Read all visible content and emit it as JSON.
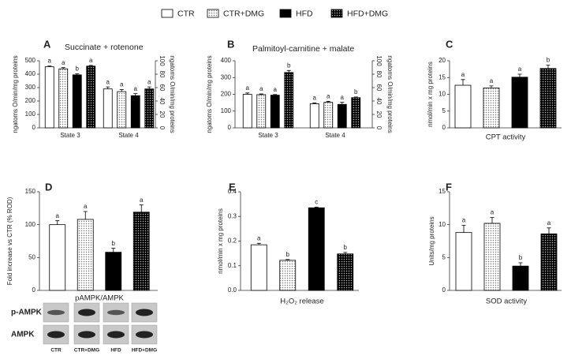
{
  "legend": {
    "series": [
      {
        "name": "CTR",
        "color": "#ffffff",
        "pattern": "solid"
      },
      {
        "name": "CTR+DMG",
        "color": "#ffffff",
        "pattern": "dots"
      },
      {
        "name": "HFD",
        "color": "#000000",
        "pattern": "solid"
      },
      {
        "name": "HFD+DMG",
        "color": "#000000",
        "pattern": "dots"
      }
    ]
  },
  "chart_data": [
    {
      "type": "bar",
      "label": "A",
      "title": "Succinate + rotenone",
      "ylabel": "ngatoms O/min/mg proteins",
      "ylim": [
        0,
        500
      ],
      "yticks": [
        0,
        100,
        200,
        300,
        400,
        500
      ],
      "y2label": "ngatoms O/min/mg proteins",
      "y2lim": [
        0,
        100
      ],
      "y2ticks": [
        0,
        20,
        40,
        60,
        80,
        100
      ],
      "groups": [
        {
          "category": "State 3",
          "axis": "y",
          "values": [
            455,
            440,
            395,
            460
          ],
          "errors": [
            6,
            9,
            8,
            5
          ],
          "letters": [
            "a",
            "a",
            "b",
            "a"
          ]
        },
        {
          "category": "State 4",
          "axis": "y2",
          "values": [
            58,
            54,
            48,
            58
          ],
          "errors": [
            3,
            3,
            3,
            3
          ],
          "letters": [
            "a",
            "a",
            "a",
            "a"
          ]
        }
      ]
    },
    {
      "type": "bar",
      "label": "B",
      "title": "Palmitoyl-carnitine + malate",
      "ylabel": "ngatoms O/min/mg proteins",
      "ylim": [
        0,
        400
      ],
      "yticks": [
        0,
        100,
        200,
        300,
        400
      ],
      "y2label": "ngatoms O/min/mg proteins",
      "y2lim": [
        0,
        100
      ],
      "y2ticks": [
        0,
        20,
        40,
        60,
        80,
        100
      ],
      "groups": [
        {
          "category": "State 3",
          "axis": "y",
          "values": [
            200,
            198,
            195,
            330
          ],
          "errors": [
            8,
            4,
            4,
            12
          ],
          "letters": [
            "a",
            "a",
            "a",
            "b"
          ]
        },
        {
          "category": "State 4",
          "axis": "y2",
          "values": [
            36,
            38,
            35,
            45
          ],
          "errors": [
            1,
            1.5,
            3,
            1
          ],
          "letters": [
            "a",
            "a",
            "a",
            "b"
          ]
        }
      ]
    },
    {
      "type": "bar",
      "label": "C",
      "ylabel": "nmol/min x mg proteins",
      "xlabel": "CPT activity",
      "ylim": [
        0,
        20
      ],
      "yticks": [
        0,
        5,
        10,
        15,
        20
      ],
      "groups": [
        {
          "axis": "y",
          "values": [
            12.7,
            11.9,
            15.1,
            17.7
          ],
          "errors": [
            1.7,
            0.6,
            0.9,
            1.0
          ],
          "letters": [
            "a",
            "a",
            "a",
            "b"
          ]
        }
      ]
    },
    {
      "type": "bar",
      "label": "D",
      "ylabel": "Fold increase vs CTR (% ROD)",
      "xlabel": "pAMPK/AMPK",
      "ylim": [
        0,
        150
      ],
      "yticks": [
        0,
        50,
        100,
        150
      ],
      "groups": [
        {
          "axis": "y",
          "values": [
            100,
            108,
            58,
            119
          ],
          "errors": [
            6,
            12,
            6,
            11
          ],
          "letters": [
            "a",
            "a",
            "b",
            "a"
          ]
        }
      ],
      "blot": {
        "rows": [
          "p-AMPK",
          "AMPK"
        ],
        "lanes": [
          "CTR",
          "CTR+DMG",
          "HFD",
          "HFD+DMG"
        ]
      }
    },
    {
      "type": "bar",
      "label": "E",
      "ylabel": "nmol/min x mg proteins",
      "xlabel": "H₂O₂ release",
      "ylim": [
        0,
        0.4
      ],
      "yticks": [
        {
          "value": 0,
          "label": "0.0"
        },
        0.1,
        0.2,
        0.3,
        0.4
      ],
      "groups": [
        {
          "axis": "y",
          "values": [
            0.185,
            0.122,
            0.335,
            0.148
          ],
          "errors": [
            0.006,
            0.003,
            0.003,
            0.006
          ],
          "letters": [
            "a",
            "b",
            "c",
            "b"
          ]
        }
      ]
    },
    {
      "type": "bar",
      "label": "F",
      "ylabel": "Units/mg proteins",
      "xlabel": "SOD activity",
      "ylim": [
        0,
        15
      ],
      "yticks": [
        0,
        5,
        10,
        15
      ],
      "groups": [
        {
          "axis": "y",
          "values": [
            8.8,
            10.2,
            3.7,
            8.6
          ],
          "errors": [
            1.1,
            0.9,
            0.5,
            0.9
          ],
          "letters": [
            "a",
            "a",
            "b",
            "a"
          ]
        }
      ]
    }
  ]
}
